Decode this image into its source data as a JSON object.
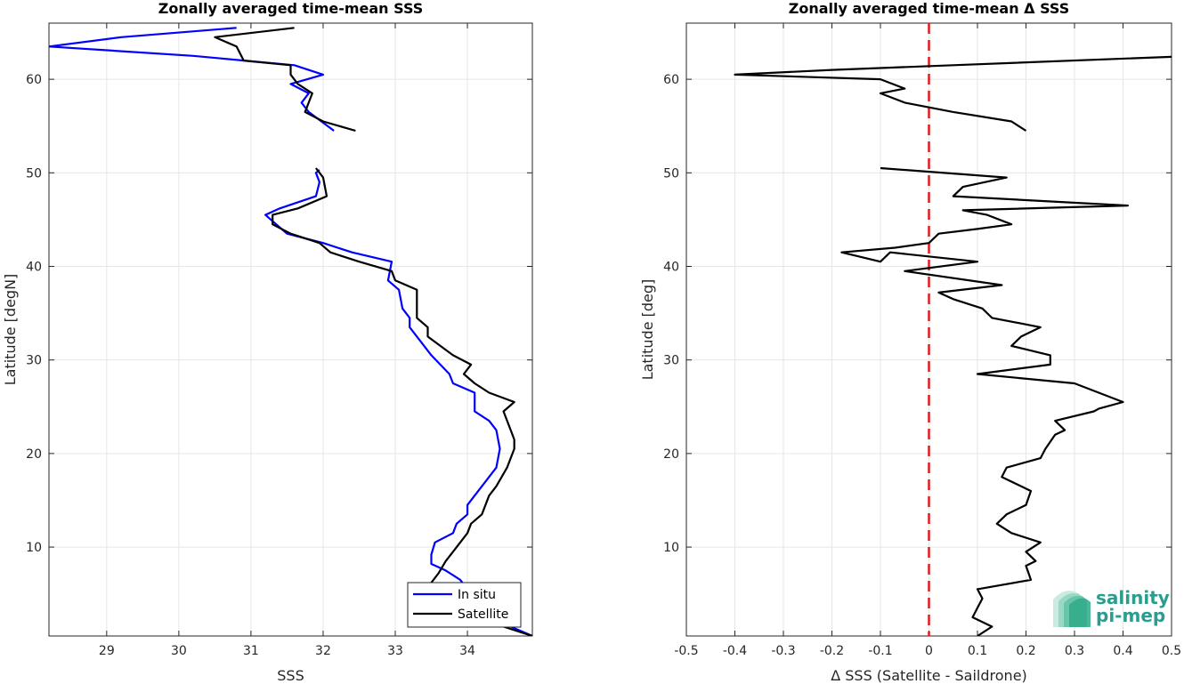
{
  "colors": {
    "insitu": "#0000ff",
    "satellite": "#000000",
    "zero_line": "#e41a1c",
    "logo": "#2a9d8f"
  },
  "logo": {
    "line1": "salinity",
    "line2": "pi-mep"
  },
  "chart_data": [
    {
      "type": "line",
      "title": "Zonally averaged time-mean SSS",
      "xlabel": "SSS",
      "ylabel": "Latitude [degN]",
      "xlim": [
        28.2,
        34.9
      ],
      "ylim": [
        0.5,
        66
      ],
      "xticks": [
        29,
        30,
        31,
        32,
        33,
        34
      ],
      "yticks": [
        10,
        20,
        30,
        40,
        50,
        60
      ],
      "grid": true,
      "legend": {
        "position": "bottom-right",
        "entries": [
          "In situ",
          "Satellite"
        ]
      },
      "series": [
        {
          "name": "In situ",
          "color": "#0000ff",
          "segments": [
            [
              [
                34.9,
                0.5
              ],
              [
                34.6,
                1.5
              ],
              [
                34.3,
                2.5
              ],
              [
                34.1,
                3.5
              ],
              [
                34.0,
                4.5
              ],
              [
                34.0,
                5.5
              ],
              [
                33.9,
                6.5
              ],
              [
                33.7,
                7.5
              ],
              [
                33.5,
                8.2
              ],
              [
                33.5,
                9.2
              ],
              [
                33.55,
                10.5
              ],
              [
                33.8,
                11.5
              ],
              [
                33.85,
                12.5
              ],
              [
                34.0,
                13.5
              ],
              [
                34.0,
                14.5
              ],
              [
                34.1,
                15.5
              ],
              [
                34.3,
                17.5
              ],
              [
                34.4,
                18.5
              ],
              [
                34.45,
                20.5
              ],
              [
                34.4,
                22.5
              ],
              [
                34.3,
                23.5
              ],
              [
                34.1,
                24.5
              ],
              [
                34.1,
                26.5
              ],
              [
                33.8,
                27.5
              ],
              [
                33.75,
                28.5
              ],
              [
                33.5,
                30.5
              ],
              [
                33.3,
                32.5
              ],
              [
                33.2,
                33.5
              ],
              [
                33.2,
                34.5
              ],
              [
                33.1,
                35.5
              ],
              [
                33.05,
                37.5
              ],
              [
                32.9,
                38.5
              ],
              [
                32.95,
                40.5
              ],
              [
                32.4,
                41.5
              ],
              [
                32.0,
                42.5
              ],
              [
                31.5,
                43.5
              ],
              [
                31.2,
                45.5
              ],
              [
                31.4,
                46.2
              ],
              [
                31.9,
                47.5
              ],
              [
                31.95,
                49.0
              ],
              [
                31.9,
                50.0
              ],
              [
                31.95,
                50.3
              ]
            ],
            [
              [
                32.15,
                54.5
              ],
              [
                31.8,
                56.5
              ],
              [
                31.7,
                57.5
              ],
              [
                31.8,
                58.5
              ],
              [
                31.55,
                59.5
              ],
              [
                32.0,
                60.5
              ],
              [
                31.6,
                61.5
              ],
              [
                30.2,
                62.5
              ],
              [
                28.2,
                63.5
              ],
              [
                29.2,
                64.5
              ],
              [
                30.8,
                65.5
              ]
            ]
          ]
        },
        {
          "name": "Satellite",
          "color": "#000000",
          "segments": [
            [
              [
                34.9,
                0.5
              ],
              [
                34.5,
                1.5
              ],
              [
                34.2,
                2.5
              ],
              [
                34.1,
                4.5
              ],
              [
                33.7,
                5.5
              ],
              [
                33.5,
                6.2
              ],
              [
                33.6,
                7.2
              ],
              [
                33.7,
                8.5
              ],
              [
                33.8,
                9.5
              ],
              [
                33.9,
                10.5
              ],
              [
                34.0,
                11.5
              ],
              [
                34.05,
                12.5
              ],
              [
                34.2,
                13.5
              ],
              [
                34.3,
                15.5
              ],
              [
                34.4,
                16.5
              ],
              [
                34.55,
                18.5
              ],
              [
                34.65,
                20.5
              ],
              [
                34.65,
                21.5
              ],
              [
                34.6,
                22.5
              ],
              [
                34.5,
                24.5
              ],
              [
                34.65,
                25.5
              ],
              [
                34.3,
                26.5
              ],
              [
                34.1,
                27.5
              ],
              [
                33.95,
                28.5
              ],
              [
                34.05,
                29.5
              ],
              [
                33.8,
                30.5
              ],
              [
                33.45,
                32.5
              ],
              [
                33.45,
                33.5
              ],
              [
                33.3,
                34.5
              ],
              [
                33.3,
                35.5
              ],
              [
                33.3,
                37.5
              ],
              [
                33.0,
                38.5
              ],
              [
                32.95,
                39.5
              ],
              [
                32.5,
                40.5
              ],
              [
                32.1,
                41.5
              ],
              [
                31.95,
                42.5
              ],
              [
                31.55,
                43.5
              ],
              [
                31.3,
                44.5
              ],
              [
                31.3,
                45.5
              ],
              [
                31.65,
                46.2
              ],
              [
                32.05,
                47.5
              ],
              [
                32.0,
                49.5
              ],
              [
                31.9,
                50.5
              ]
            ],
            [
              [
                32.45,
                54.5
              ],
              [
                32.0,
                55.5
              ],
              [
                31.75,
                56.5
              ],
              [
                31.85,
                58.5
              ],
              [
                31.65,
                59.5
              ],
              [
                31.55,
                60.5
              ],
              [
                31.55,
                61.5
              ],
              [
                30.9,
                62.0
              ],
              [
                30.8,
                63.5
              ],
              [
                30.5,
                64.5
              ],
              [
                31.6,
                65.5
              ]
            ]
          ]
        }
      ]
    },
    {
      "type": "line",
      "title": "Zonally averaged time-mean Δ SSS",
      "xlabel": "Δ SSS (Satellite - Saildrone)",
      "ylabel": "Latitude [deg]",
      "xlim": [
        -0.5,
        0.5
      ],
      "ylim": [
        0.5,
        66
      ],
      "xticks": [
        -0.5,
        -0.4,
        -0.3,
        -0.2,
        -0.1,
        0,
        0.1,
        0.2,
        0.3,
        0.4,
        0.5
      ],
      "xtick_labels": [
        "-0.5",
        "-0.4",
        "-0.3",
        "-0.2",
        "-0.1",
        "0",
        "0.1",
        "0.2",
        "0.3",
        "0.4",
        "0.5"
      ],
      "yticks": [
        10,
        20,
        30,
        40,
        50,
        60
      ],
      "grid": true,
      "reference_line": {
        "x": 0,
        "style": "dashed",
        "color": "#e41a1c"
      },
      "series": [
        {
          "name": "",
          "color": "#000000",
          "segments": [
            [
              [
                0.1,
                0.5
              ],
              [
                0.13,
                1.5
              ],
              [
                0.09,
                2.5
              ],
              [
                0.1,
                3.5
              ],
              [
                0.11,
                4.5
              ],
              [
                0.1,
                5.5
              ],
              [
                0.21,
                6.5
              ],
              [
                0.2,
                8.0
              ],
              [
                0.22,
                8.5
              ],
              [
                0.2,
                9.5
              ],
              [
                0.23,
                10.5
              ],
              [
                0.17,
                11.5
              ],
              [
                0.14,
                12.5
              ],
              [
                0.16,
                13.5
              ],
              [
                0.2,
                14.5
              ],
              [
                0.21,
                16.0
              ],
              [
                0.15,
                17.5
              ],
              [
                0.16,
                18.5
              ],
              [
                0.23,
                19.5
              ],
              [
                0.24,
                20.5
              ],
              [
                0.26,
                22.0
              ],
              [
                0.28,
                22.5
              ],
              [
                0.26,
                23.5
              ],
              [
                0.34,
                24.5
              ],
              [
                0.35,
                24.8
              ],
              [
                0.4,
                25.5
              ],
              [
                0.3,
                27.5
              ],
              [
                0.1,
                28.5
              ],
              [
                0.25,
                29.5
              ],
              [
                0.25,
                30.5
              ],
              [
                0.17,
                31.5
              ],
              [
                0.19,
                32.5
              ],
              [
                0.23,
                33.5
              ],
              [
                0.13,
                34.5
              ],
              [
                0.11,
                35.5
              ],
              [
                0.05,
                36.5
              ],
              [
                0.02,
                37.2
              ],
              [
                0.15,
                38.0
              ],
              [
                -0.05,
                39.5
              ],
              [
                0.1,
                40.5
              ],
              [
                -0.08,
                41.5
              ],
              [
                -0.1,
                40.5
              ],
              [
                -0.18,
                41.5
              ],
              [
                -0.07,
                42.0
              ],
              [
                0.0,
                42.5
              ],
              [
                0.02,
                43.5
              ],
              [
                0.1,
                44.0
              ],
              [
                0.17,
                44.5
              ],
              [
                0.12,
                45.5
              ],
              [
                0.07,
                46.0
              ],
              [
                0.41,
                46.5
              ],
              [
                0.05,
                47.5
              ],
              [
                0.07,
                48.5
              ],
              [
                0.16,
                49.5
              ],
              [
                -0.1,
                50.5
              ]
            ],
            [
              [
                0.2,
                54.5
              ],
              [
                0.17,
                55.5
              ],
              [
                0.05,
                56.5
              ],
              [
                -0.05,
                57.5
              ],
              [
                -0.1,
                58.5
              ],
              [
                -0.05,
                59.0
              ],
              [
                -0.1,
                60.0
              ],
              [
                -0.4,
                60.5
              ],
              [
                -0.2,
                61.0
              ],
              [
                0.05,
                61.5
              ],
              [
                0.55,
                62.5
              ]
            ]
          ]
        }
      ]
    }
  ]
}
